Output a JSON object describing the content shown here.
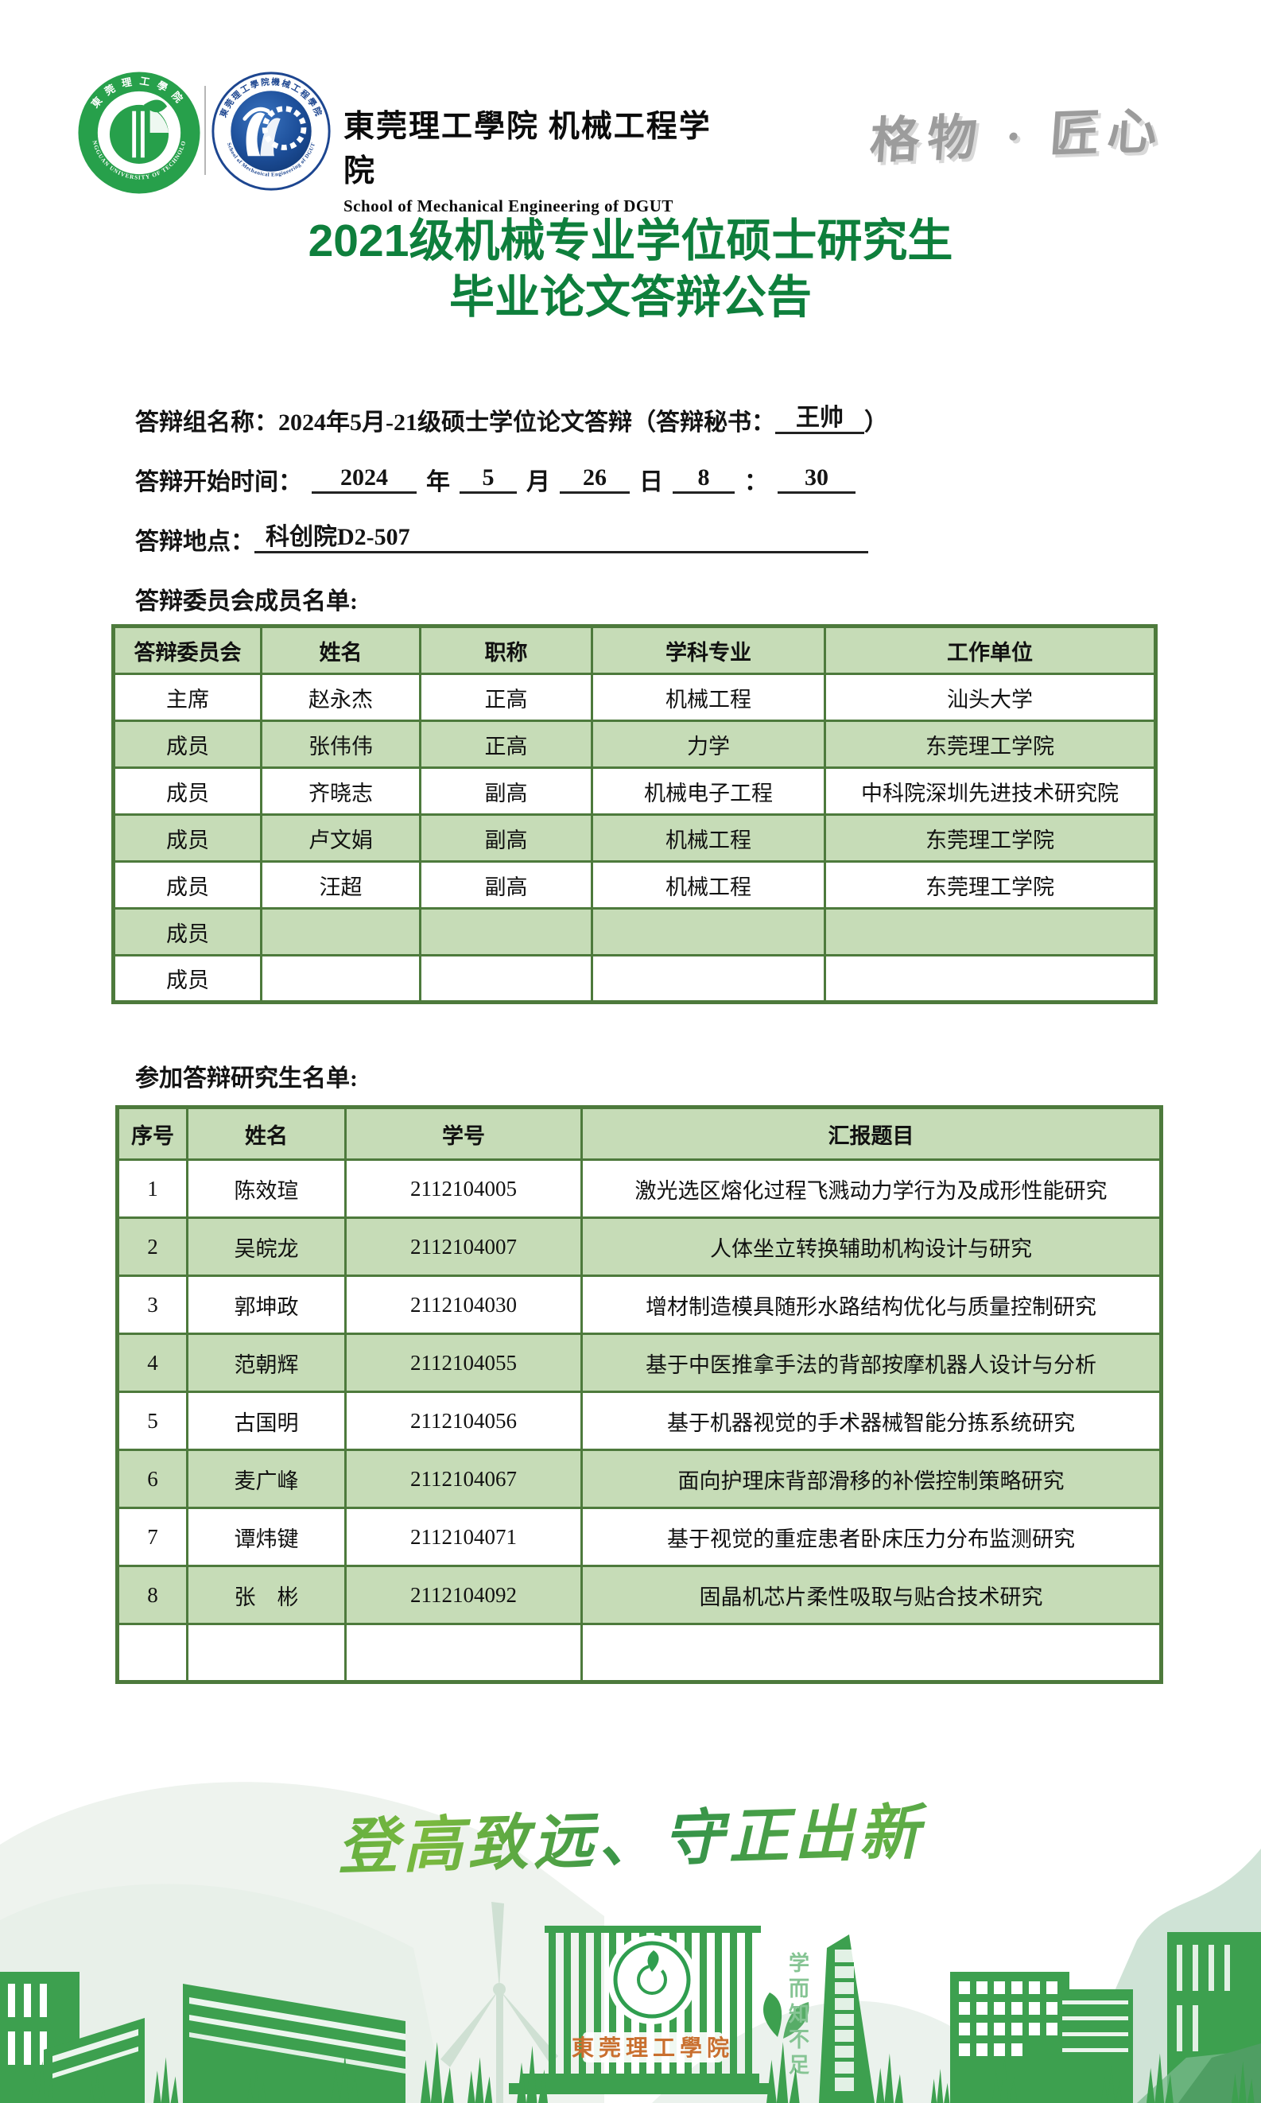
{
  "colors": {
    "title_green": "#0e7f3c",
    "table_border_green": "#4d7a3c",
    "table_fill_green": "#c6dcb7",
    "footer_silhouette_green": "#3da04f",
    "motto_gray": "#9c9c9c",
    "tower_label_orange": "#c96f2f"
  },
  "header": {
    "school_name_cn": "東莞理工學院 机械工程学院",
    "school_name_en": "School of Mechanical Engineering of DGUT",
    "motto_calligraphy": "格物 · 匠心",
    "university_seal": {
      "ring_top": "東莞理工學院",
      "ring_bottom": "DONGGUAN UNIVERSITY OF TECHNOLOGY"
    },
    "school_seal": {
      "ring_top": "東莞理工學院機械工程學院",
      "ring_bottom": "School of Mechanical Engineering of DGUT"
    }
  },
  "title": {
    "line1": "2021级机械专业学位硕士研究生",
    "line2": "毕业论文答辩公告"
  },
  "info": {
    "group": {
      "label": "答辩组名称：",
      "value": "2024年5月-21级硕士学位论文答辩（答辩秘书：",
      "secretary": "王帅",
      "suffix": "）"
    },
    "time": {
      "label": "答辩开始时间：",
      "year": "2024",
      "unit_year": "年",
      "month": "5",
      "unit_month": "月",
      "day": "26",
      "unit_day": "日",
      "hour": "8",
      "colon": "：",
      "minute": "30"
    },
    "venue": {
      "label": "答辩地点：",
      "value": "科创院D2-507"
    },
    "committee_heading": "答辩委员会成员名单:",
    "students_heading": "参加答辩研究生名单:"
  },
  "committee_table": {
    "headers": [
      "答辩委员会",
      "姓名",
      "职称",
      "学科专业",
      "工作单位"
    ],
    "rows": [
      [
        "主席",
        "赵永杰",
        "正高",
        "机械工程",
        "汕头大学"
      ],
      [
        "成员",
        "张伟伟",
        "正高",
        "力学",
        "东莞理工学院"
      ],
      [
        "成员",
        "齐晓志",
        "副高",
        "机械电子工程",
        "中科院深圳先进技术研究院"
      ],
      [
        "成员",
        "卢文娟",
        "副高",
        "机械工程",
        "东莞理工学院"
      ],
      [
        "成员",
        "汪超",
        "副高",
        "机械工程",
        "东莞理工学院"
      ],
      [
        "成员",
        "",
        "",
        "",
        ""
      ],
      [
        "成员",
        "",
        "",
        "",
        ""
      ]
    ]
  },
  "students_table": {
    "headers": [
      "序号",
      "姓名",
      "学号",
      "汇报题目"
    ],
    "rows": [
      [
        "1",
        "陈效瑄",
        "2112104005",
        "激光选区熔化过程飞溅动力学行为及成形性能研究"
      ],
      [
        "2",
        "吴皖龙",
        "2112104007",
        "人体坐立转换辅助机构设计与研究"
      ],
      [
        "3",
        "郭坤政",
        "2112104030",
        "增材制造模具随形水路结构优化与质量控制研究"
      ],
      [
        "4",
        "范朝辉",
        "2112104055",
        "基于中医推拿手法的背部按摩机器人设计与分析"
      ],
      [
        "5",
        "古国明",
        "2112104056",
        "基于机器视觉的手术器械智能分拣系统研究"
      ],
      [
        "6",
        "麦广峰",
        "2112104067",
        "面向护理床背部滑移的补偿控制策略研究"
      ],
      [
        "7",
        "谭炜键",
        "2112104071",
        "基于视觉的重症患者卧床压力分布监测研究"
      ],
      [
        "8",
        "张　彬",
        "2112104092",
        "固晶机芯片柔性吸取与贴合技术研究"
      ],
      [
        "",
        "",
        "",
        ""
      ]
    ]
  },
  "footer": {
    "motto_calligraphy": "登高致远、守正出新",
    "stone_text": "学而知不足",
    "building_label": "東莞理工學院"
  }
}
